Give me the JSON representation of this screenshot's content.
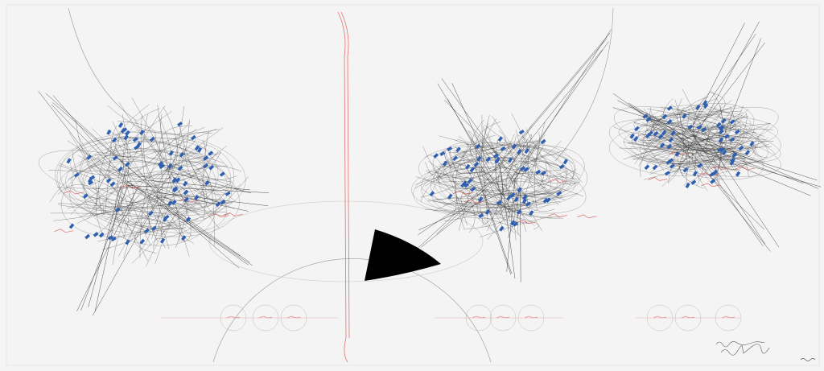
{
  "artwork": {
    "colors": {
      "paper": "#f4f4f4",
      "ink": "#2a2a2a",
      "red_ink": "#d9534f",
      "blue_marks": "#2f5fb0",
      "wedge": "#000000"
    },
    "clusters": [
      {
        "name": "left-cluster",
        "blue_mark_count": 70
      },
      {
        "name": "middle-cluster",
        "blue_mark_count": 55
      },
      {
        "name": "right-cluster",
        "blue_mark_count": 60
      }
    ]
  }
}
